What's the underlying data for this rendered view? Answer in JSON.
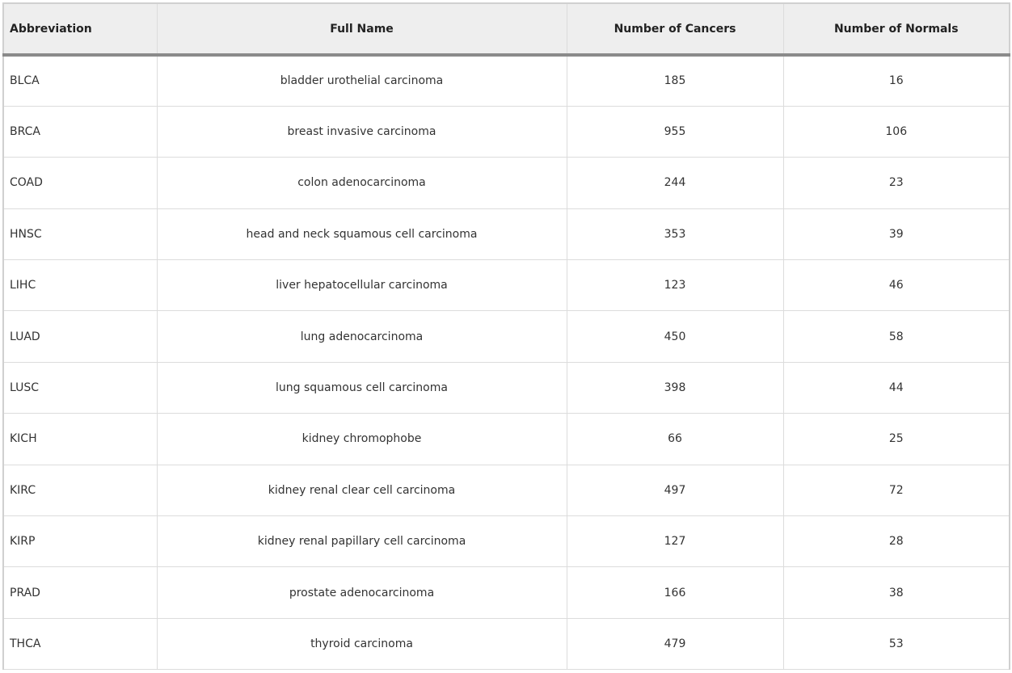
{
  "table": {
    "headers": [
      "Abbreviation",
      "Full Name",
      "Number of Cancers",
      "Number of Normals"
    ],
    "rows": [
      [
        "BLCA",
        "bladder urothelial carcinoma",
        "185",
        "16"
      ],
      [
        "BRCA",
        "breast invasive carcinoma",
        "955",
        "106"
      ],
      [
        "COAD",
        "colon adenocarcinoma",
        "244",
        "23"
      ],
      [
        "HNSC",
        "head and neck squamous cell carcinoma",
        "353",
        "39"
      ],
      [
        "LIHC",
        "liver hepatocellular carcinoma",
        "123",
        "46"
      ],
      [
        "LUAD",
        "lung adenocarcinoma",
        "450",
        "58"
      ],
      [
        "LUSC",
        "lung squamous cell carcinoma",
        "398",
        "44"
      ],
      [
        "KICH",
        "kidney chromophobe",
        "66",
        "25"
      ],
      [
        "KIRC",
        "kidney renal clear cell carcinoma",
        "497",
        "72"
      ],
      [
        "KIRP",
        "kidney renal papillary cell carcinoma",
        "127",
        "28"
      ],
      [
        "PRAD",
        "prostate adenocarcinoma",
        "166",
        "38"
      ],
      [
        "THCA",
        "thyroid carcinoma",
        "479",
        "53"
      ]
    ]
  }
}
